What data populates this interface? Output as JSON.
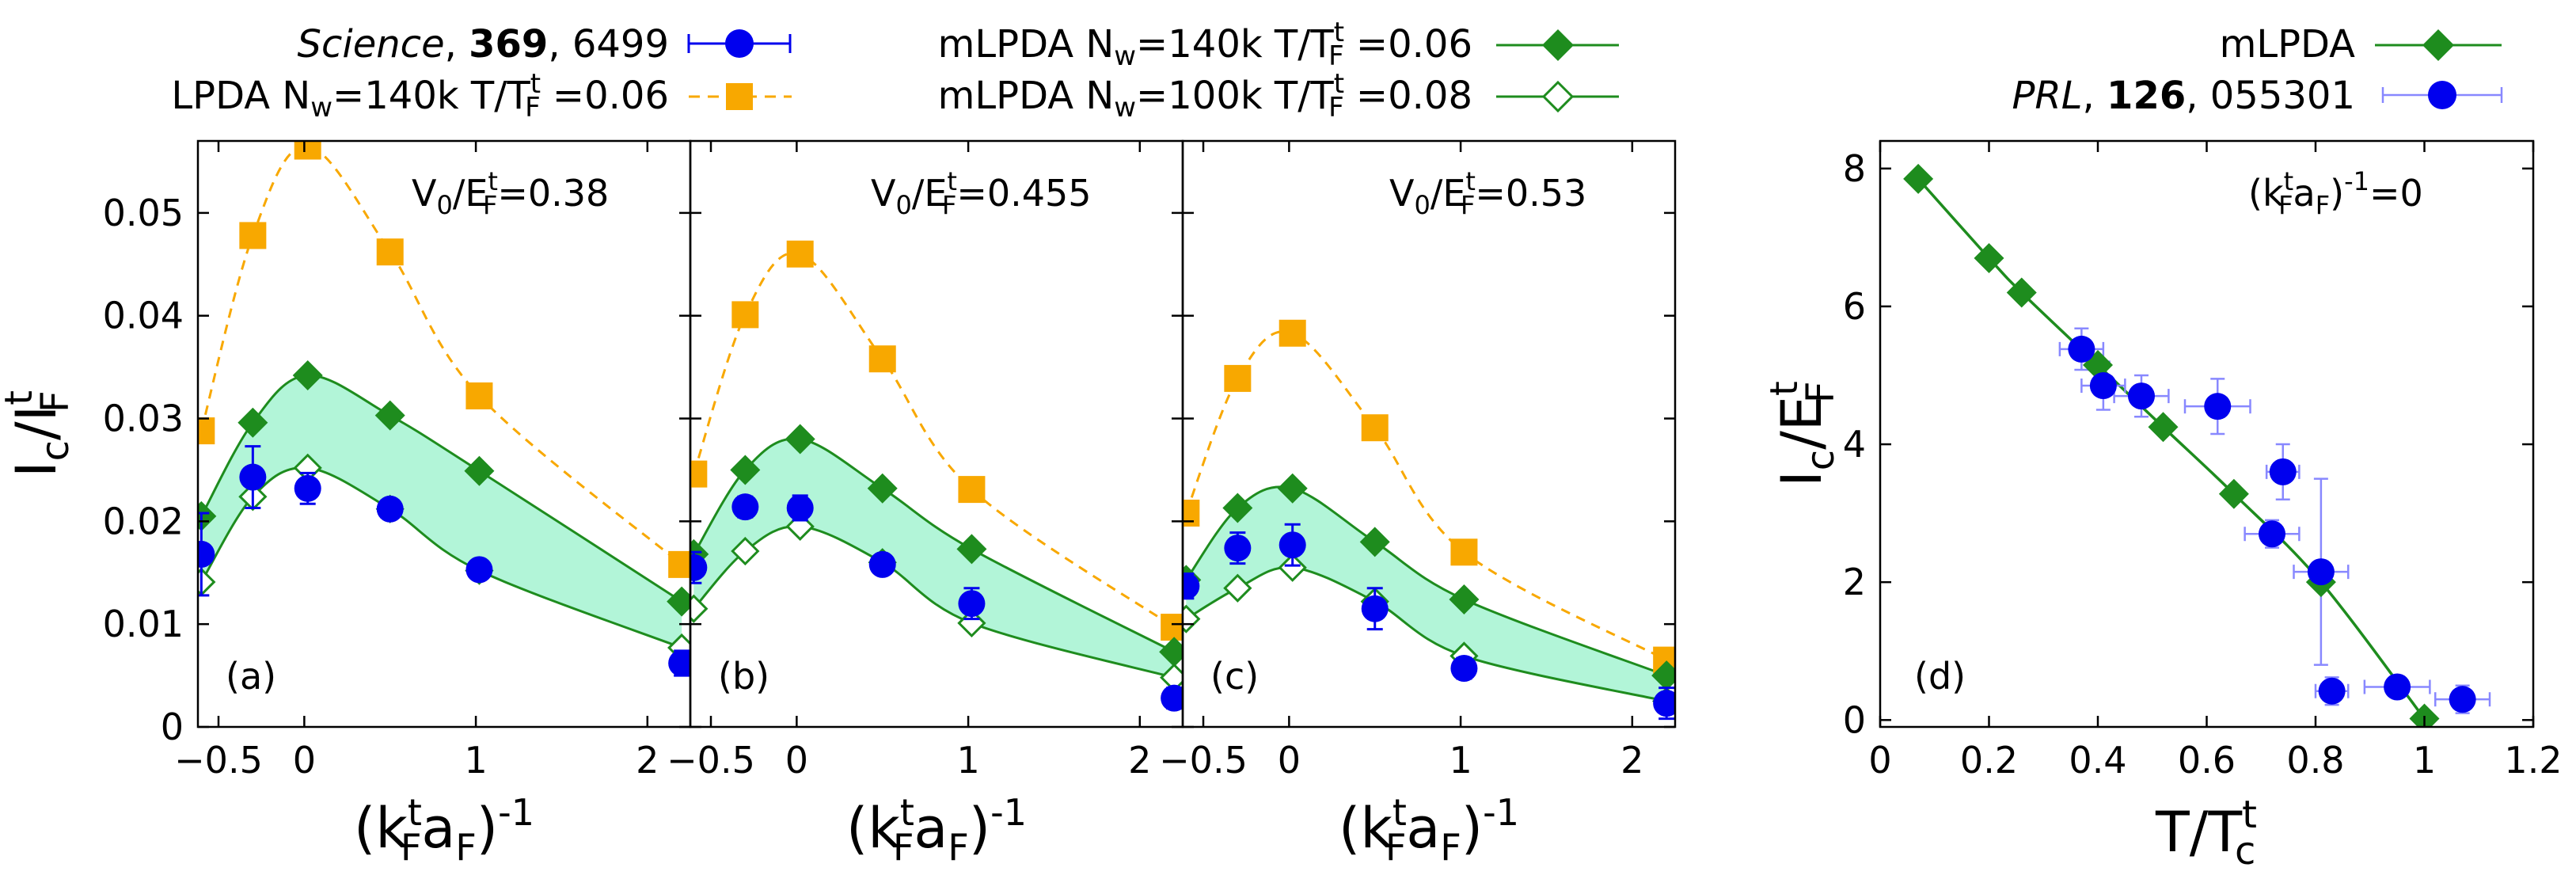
{
  "legend": {
    "science": {
      "journal": "Science",
      "volume": "369",
      "page": "6499"
    },
    "lpda": {
      "text": "LPDA N",
      "sub_w": "w",
      "mid": "=140k T/T",
      "sup_t": "t",
      "sub_F": "F",
      "tail": " =0.06"
    },
    "mlpda140": {
      "text": "mLPDA N",
      "sub_w": "w",
      "mid": "=140k T/T",
      "sup_t": "t",
      "sub_F": "F",
      "tail": " =0.06"
    },
    "mlpda100": {
      "text": "mLPDA N",
      "sub_w": "w",
      "mid": "=100k T/T",
      "sup_t": "t",
      "sub_F": "F",
      "tail": " =0.08"
    },
    "mlpda_d": "mLPDA",
    "prl": {
      "journal": "PRL",
      "volume": "126",
      "page": "055301"
    }
  },
  "colors": {
    "blue": "#0000ee",
    "orange": "#f8a800",
    "green": "#1e8c1e",
    "band": "#b2f5d8",
    "errlight": "#8888ff"
  },
  "chart_data": [
    {
      "type": "scatter",
      "panel_label": "(a)",
      "annotation": {
        "pre": "V",
        "sub0": "0",
        "slash": "/E",
        "subF": "F",
        "supt": "t",
        "val": "=0.38"
      },
      "xlim": [
        -0.62,
        2.25
      ],
      "ylim": [
        0,
        0.057
      ],
      "xticks": [
        -0.5,
        0,
        1,
        2
      ],
      "xtick_labels": [
        "-0.5",
        "0",
        "1",
        "2"
      ],
      "yticks": [
        0,
        0.01,
        0.02,
        0.03,
        0.04,
        0.05
      ],
      "ytick_labels": [
        "0",
        "0.01",
        "0.02",
        "0.03",
        "0.04",
        "0.05"
      ],
      "ylabel": {
        "main": "I",
        "sub": "c",
        "slash": "/I",
        "sub2": "F",
        "sup2": "t"
      },
      "xlabel": {
        "open": "(k",
        "sub": "F",
        "sup": "t",
        "mid": "a",
        "sub2": "F",
        "close": ")",
        "exp": "-1"
      },
      "series": [
        {
          "name": "Science 369 6499",
          "x": [
            -0.6,
            -0.3,
            0.02,
            0.5,
            1.02,
            2.2
          ],
          "y": [
            0.0168,
            0.0243,
            0.0232,
            0.0212,
            0.0153,
            0.0062
          ],
          "yerr": [
            0.004,
            0.003,
            0.0015,
            0.0008,
            0.0008,
            0.0012
          ]
        },
        {
          "name": "LPDA 140k 0.06",
          "x": [
            -0.6,
            -0.3,
            0.02,
            0.5,
            1.02,
            2.2
          ],
          "y": [
            0.0288,
            0.0478,
            0.0565,
            0.0462,
            0.0322,
            0.0158
          ]
        },
        {
          "name": "mLPDA 140k 0.06",
          "x": [
            -0.6,
            -0.3,
            0.02,
            0.5,
            1.02,
            2.2
          ],
          "y": [
            0.0205,
            0.0296,
            0.0342,
            0.0303,
            0.0249,
            0.0122
          ]
        },
        {
          "name": "mLPDA 100k 0.08",
          "x": [
            -0.6,
            -0.3,
            0.02,
            0.5,
            1.02,
            2.2
          ],
          "y": [
            0.0141,
            0.0224,
            0.0252,
            0.0212,
            0.0152,
            0.0077
          ]
        }
      ]
    },
    {
      "type": "scatter",
      "panel_label": "(b)",
      "annotation": {
        "pre": "V",
        "sub0": "0",
        "slash": "/E",
        "subF": "F",
        "supt": "t",
        "val": "=0.455"
      },
      "xlim": [
        -0.62,
        2.25
      ],
      "ylim": [
        0,
        0.057
      ],
      "xticks": [
        -0.5,
        0,
        1,
        2
      ],
      "xtick_labels": [
        "-0.5",
        "0",
        "1",
        "2"
      ],
      "xlabel": {
        "open": "(k",
        "sub": "F",
        "sup": "t",
        "mid": "a",
        "sub2": "F",
        "close": ")",
        "exp": "-1"
      },
      "series": [
        {
          "name": "Science 369 6499",
          "x": [
            -0.6,
            -0.3,
            0.02,
            0.5,
            1.02,
            2.2
          ],
          "y": [
            0.0155,
            0.0214,
            0.0213,
            0.0158,
            0.012,
            0.0028
          ],
          "yerr": [
            0.0015,
            0.001,
            0.0012,
            0.0008,
            0.0015,
            0.001
          ]
        },
        {
          "name": "LPDA 140k 0.06",
          "x": [
            -0.6,
            -0.3,
            0.02,
            0.5,
            1.02,
            2.2
          ],
          "y": [
            0.0246,
            0.0401,
            0.046,
            0.0358,
            0.0231,
            0.0097
          ]
        },
        {
          "name": "mLPDA 140k 0.06",
          "x": [
            -0.6,
            -0.3,
            0.02,
            0.5,
            1.02,
            2.2
          ],
          "y": [
            0.0168,
            0.025,
            0.028,
            0.0232,
            0.0173,
            0.0073
          ]
        },
        {
          "name": "mLPDA 100k 0.08",
          "x": [
            -0.6,
            -0.3,
            0.02,
            0.5,
            1.02,
            2.2
          ],
          "y": [
            0.0115,
            0.0171,
            0.0195,
            0.016,
            0.0101,
            0.0048
          ]
        }
      ]
    },
    {
      "type": "scatter",
      "panel_label": "(c)",
      "annotation": {
        "pre": "V",
        "sub0": "0",
        "slash": "/E",
        "subF": "F",
        "supt": "t",
        "val": "=0.53"
      },
      "xlim": [
        -0.62,
        2.25
      ],
      "ylim": [
        0,
        0.057
      ],
      "xticks": [
        -0.5,
        0,
        1,
        2
      ],
      "xtick_labels": [
        "-0.5",
        "0",
        "1",
        "2"
      ],
      "xlabel": {
        "open": "(k",
        "sub": "F",
        "sup": "t",
        "mid": "a",
        "sub2": "F",
        "close": ")",
        "exp": "-1"
      },
      "series": [
        {
          "name": "Science 369 6499",
          "x": [
            -0.6,
            -0.3,
            0.02,
            0.5,
            1.02,
            2.2
          ],
          "y": [
            0.0137,
            0.0174,
            0.0177,
            0.0115,
            0.0057,
            0.0023
          ],
          "yerr": [
            0.0012,
            0.0015,
            0.002,
            0.002,
            0.001,
            0.0015
          ]
        },
        {
          "name": "LPDA 140k 0.06",
          "x": [
            -0.6,
            -0.3,
            0.02,
            0.5,
            1.02,
            2.2
          ],
          "y": [
            0.0208,
            0.0339,
            0.0383,
            0.0291,
            0.017,
            0.0065
          ]
        },
        {
          "name": "mLPDA 140k 0.06",
          "x": [
            -0.6,
            -0.3,
            0.02,
            0.5,
            1.02,
            2.2
          ],
          "y": [
            0.0143,
            0.0213,
            0.0232,
            0.018,
            0.0124,
            0.005
          ]
        },
        {
          "name": "mLPDA 100k 0.08",
          "x": [
            -0.6,
            -0.3,
            0.02,
            0.5,
            1.02,
            2.2
          ],
          "y": [
            0.0105,
            0.0135,
            0.0155,
            0.0122,
            0.0069,
            0.0025
          ]
        }
      ]
    },
    {
      "type": "scatter",
      "panel_label": "(d)",
      "annotation": {
        "open": "(k",
        "sub": "F",
        "sup": "t",
        "mid": "a",
        "sub2": "F",
        "close": ")",
        "exp": "-1",
        "val": "=0"
      },
      "xlim": [
        0,
        1.2
      ],
      "ylim": [
        -0.1,
        8.4
      ],
      "xticks": [
        0,
        0.2,
        0.4,
        0.6,
        0.8,
        1,
        1.2
      ],
      "xtick_labels": [
        "0",
        "0.2",
        "0.4",
        "0.6",
        "0.8",
        "1",
        "1.2"
      ],
      "yticks": [
        0,
        2,
        4,
        6,
        8
      ],
      "ytick_labels": [
        "0",
        "2",
        "4",
        "6",
        "8"
      ],
      "ylabel": {
        "main": "I",
        "sub": "c",
        "slash": "/E",
        "sub2": "F",
        "sup2": "t"
      },
      "xlabel": {
        "main": "T/T",
        "sub": "c",
        "sup": "t"
      },
      "series": [
        {
          "name": "mLPDA",
          "x": [
            0.07,
            0.2,
            0.26,
            0.4,
            0.52,
            0.65,
            0.81,
            1.0
          ],
          "y": [
            7.85,
            6.7,
            6.2,
            5.15,
            4.25,
            3.28,
            2.0,
            0.02
          ]
        },
        {
          "name": "PRL 126 055301",
          "x": [
            0.37,
            0.41,
            0.48,
            0.62,
            0.74,
            0.72,
            0.81,
            0.83,
            0.95,
            1.07
          ],
          "y": [
            5.38,
            4.85,
            4.7,
            4.55,
            3.6,
            2.7,
            2.15,
            0.42,
            0.48,
            0.3
          ],
          "xerr": [
            0.04,
            0.04,
            0.05,
            0.06,
            0.03,
            0.05,
            0.05,
            0.03,
            0.06,
            0.05
          ],
          "yerr": [
            0.3,
            0.35,
            0.3,
            0.4,
            0.4,
            0.2,
            1.35,
            0.2,
            0.15,
            0.2
          ]
        }
      ]
    }
  ]
}
